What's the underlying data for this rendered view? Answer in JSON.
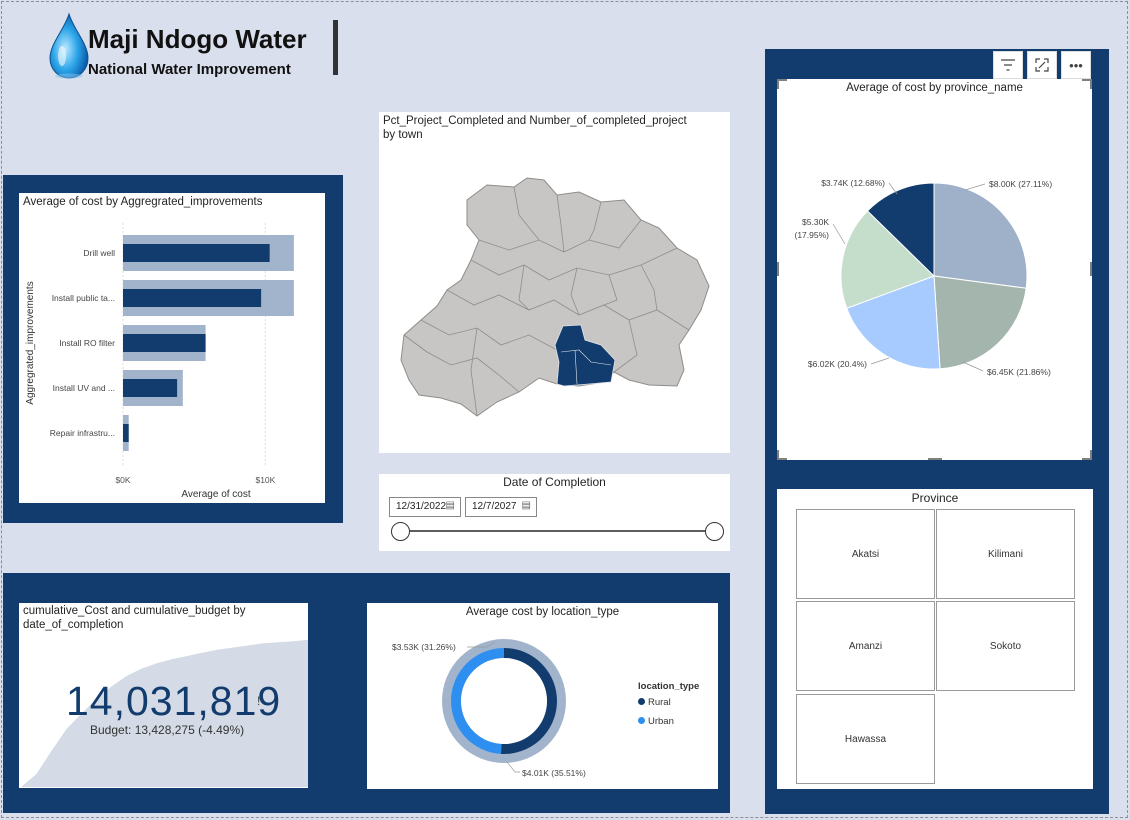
{
  "brand": {
    "title": "Maji Ndogo Water",
    "subtitle": "National Water Improvement"
  },
  "colors": {
    "navy": "#123c6e",
    "page_bg": "#d9dfec",
    "bar_dark": "#123c6e",
    "bar_light": "#a2b4cc",
    "map_fill": "#c8c6c4",
    "map_selected": "#123c6e"
  },
  "bar_chart": {
    "title": "Average of cost by Aggregrated_improvements",
    "ylabel": "Aggregrated_improvements",
    "xlabel": "Average of cost",
    "ticks": [
      "$0K",
      "$10K"
    ]
  },
  "map": {
    "title_line1": "Pct_Project_Completed and Number_of_completed_project",
    "title_line2": "by town"
  },
  "date_slicer": {
    "title": "Date of Completion",
    "start": "12/31/2022",
    "end": "12/7/2027",
    "calendar_icon": "calendar-icon"
  },
  "pie": {
    "title": "Average of cost by province_name",
    "labels": [
      {
        "text": "$8.00K (27.11%)"
      },
      {
        "text": "$6.45K (21.86%)"
      },
      {
        "text": "$6.02K (20.4%)"
      },
      {
        "text": "$5.30K"
      },
      {
        "text": "(17.95%)"
      },
      {
        "text": "$3.74K (12.68%)"
      }
    ]
  },
  "province_slicer": {
    "title": "Province",
    "items": [
      "Akatsi",
      "Kilimani",
      "Amanzi",
      "Sokoto",
      "Hawassa"
    ]
  },
  "kpi": {
    "title_line1": "cumulative_Cost and cumulative_budget by",
    "title_line2": "date_of_completion",
    "value": "14,031,819",
    "flag": "!",
    "budget": "Budget: 13,428,275 (-4.49%)"
  },
  "donut": {
    "title": "Average cost by location_type",
    "legend_title": "location_type",
    "legend": [
      {
        "name": "Rural",
        "color": "#123c6e"
      },
      {
        "name": "Urban",
        "color": "#2e8ff0"
      }
    ],
    "label_urban": "$3.53K (31.26%)",
    "label_rural": "$4.01K (35.51%)"
  },
  "visual_header": {
    "icons": [
      "filter-icon",
      "focus-mode-icon",
      "more-options-icon"
    ]
  },
  "chart_data": [
    {
      "type": "bar",
      "title": "Average of cost by Aggregrated_improvements",
      "xlabel": "Average of cost",
      "ylabel": "Aggregrated_improvements",
      "categories": [
        "Drill well",
        "Install public ta...",
        "Install RO filter",
        "Install UV and ...",
        "Repair infrastru..."
      ],
      "series": [
        {
          "values": [
            10300,
            9700,
            5800,
            3800,
            400
          ]
        },
        {
          "values": [
            12000,
            12000,
            5800,
            4200,
            400
          ]
        }
      ],
      "xlim": [
        0,
        12500
      ],
      "ticks": [
        "$0K",
        "$10K"
      ]
    },
    {
      "type": "pie",
      "title": "Average of cost by province_name",
      "categories": [
        "$8.00K",
        "$6.45K",
        "$6.02K",
        "$5.30K",
        "$3.74K"
      ],
      "values": [
        8.0,
        6.45,
        6.02,
        5.3,
        3.74
      ],
      "percents": [
        27.11,
        21.86,
        20.4,
        17.95,
        12.68
      ],
      "colors": [
        "#9fb1c8",
        "#a3b5ad",
        "#a8cbff",
        "#c5ddcb",
        "#123c6e"
      ]
    },
    {
      "type": "pie",
      "title": "Average cost by location_type",
      "categories": [
        "Rural",
        "Urban"
      ],
      "values": [
        4.01,
        3.53
      ],
      "percents": [
        35.51,
        31.26
      ]
    },
    {
      "type": "area",
      "title": "cumulative_Cost and cumulative_budget by date_of_completion",
      "values": [
        0,
        1.2,
        3.4,
        5.5,
        7.0,
        8.4,
        9.6,
        10.6,
        11.3,
        11.8,
        12.2,
        12.5,
        12.8,
        13.1,
        13.3,
        13.5,
        13.7,
        13.8,
        13.9,
        14.03
      ]
    }
  ]
}
